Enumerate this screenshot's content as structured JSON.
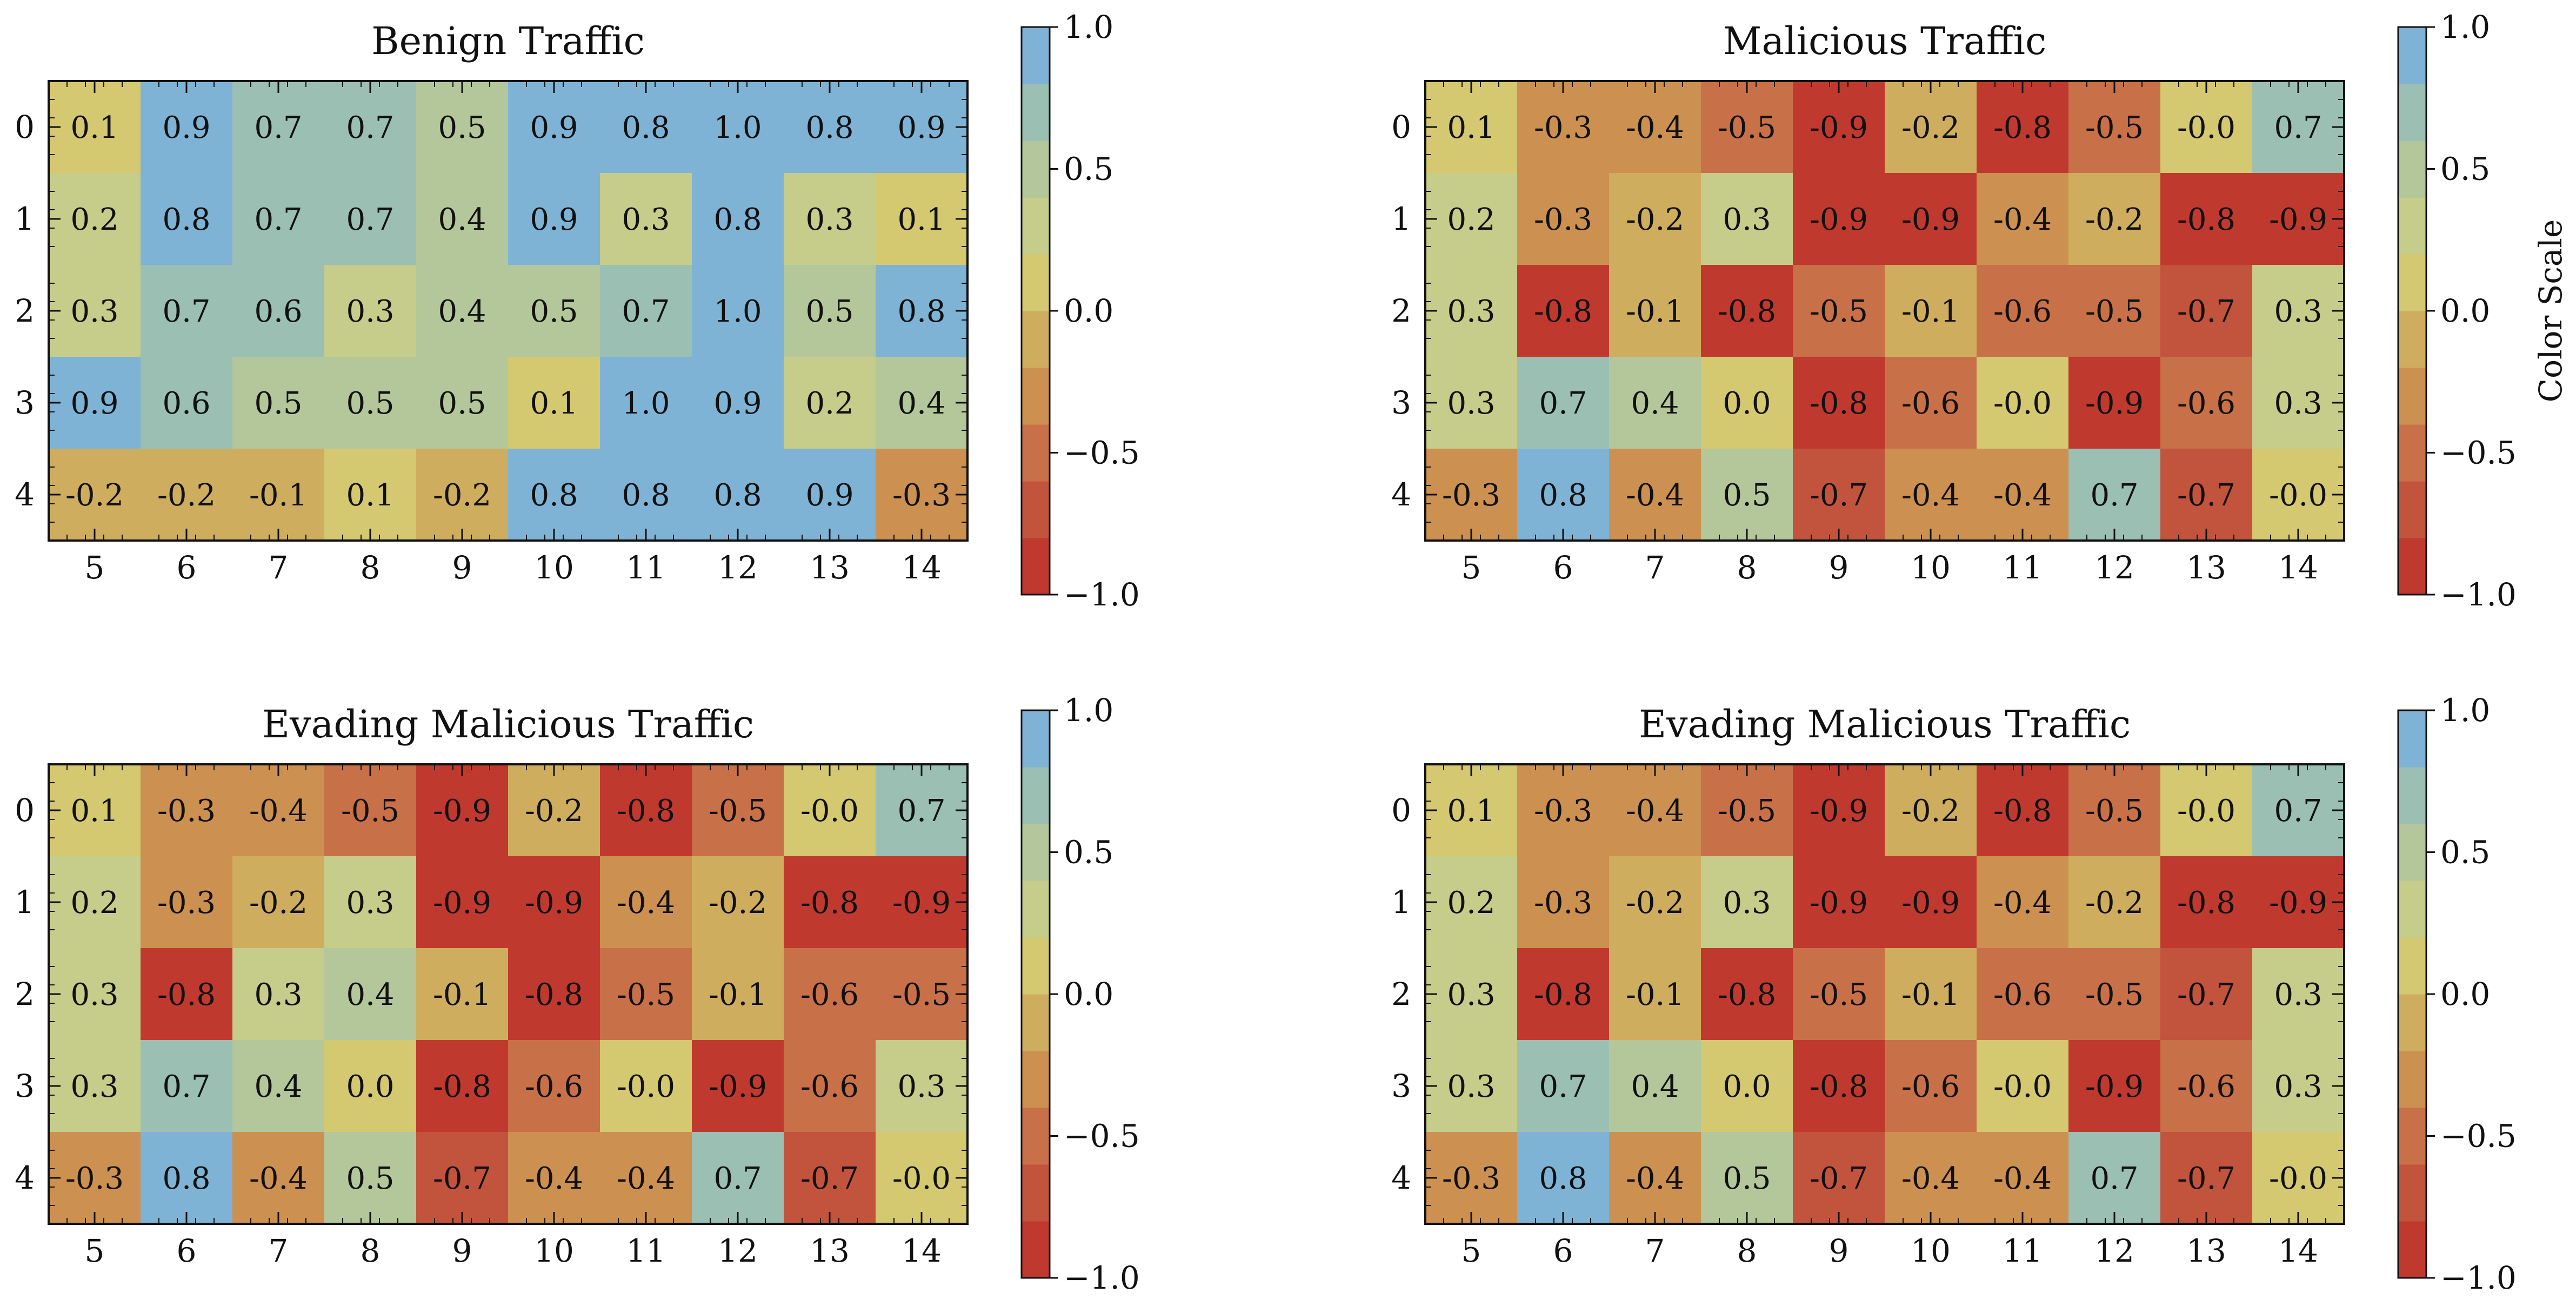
{
  "chart_data": [
    {
      "type": "heatmap",
      "title": "Benign Traffic",
      "x_ticks": [
        "5",
        "6",
        "7",
        "8",
        "9",
        "10",
        "11",
        "12",
        "13",
        "14"
      ],
      "y_ticks": [
        "0",
        "1",
        "2",
        "3",
        "4"
      ],
      "values": [
        [
          "0.1",
          "0.9",
          "0.7",
          "0.7",
          "0.5",
          "0.9",
          "0.8",
          "1.0",
          "0.8",
          "0.9"
        ],
        [
          "0.2",
          "0.8",
          "0.7",
          "0.7",
          "0.4",
          "0.9",
          "0.3",
          "0.8",
          "0.3",
          "0.1"
        ],
        [
          "0.3",
          "0.7",
          "0.6",
          "0.3",
          "0.4",
          "0.5",
          "0.7",
          "1.0",
          "0.5",
          "0.8"
        ],
        [
          "0.9",
          "0.6",
          "0.5",
          "0.5",
          "0.5",
          "0.1",
          "1.0",
          "0.9",
          "0.2",
          "0.4"
        ],
        [
          "-0.2",
          "-0.2",
          "-0.1",
          "0.1",
          "-0.2",
          "0.8",
          "0.8",
          "0.8",
          "0.9",
          "-0.3"
        ]
      ],
      "vmin": -1.0,
      "vmax": 1.0,
      "colorbar": {
        "ticks": [
          "1.0",
          "0.5",
          "0.0",
          "−0.5",
          "−1.0"
        ],
        "label": ""
      }
    },
    {
      "type": "heatmap",
      "title": "Malicious Traffic",
      "x_ticks": [
        "5",
        "6",
        "7",
        "8",
        "9",
        "10",
        "11",
        "12",
        "13",
        "14"
      ],
      "y_ticks": [
        "0",
        "1",
        "2",
        "3",
        "4"
      ],
      "values": [
        [
          "0.1",
          "-0.3",
          "-0.4",
          "-0.5",
          "-0.9",
          "-0.2",
          "-0.8",
          "-0.5",
          "-0.0",
          "0.7"
        ],
        [
          "0.2",
          "-0.3",
          "-0.2",
          "0.3",
          "-0.9",
          "-0.9",
          "-0.4",
          "-0.2",
          "-0.8",
          "-0.9"
        ],
        [
          "0.3",
          "-0.8",
          "-0.1",
          "-0.8",
          "-0.5",
          "-0.1",
          "-0.6",
          "-0.5",
          "-0.7",
          "0.3"
        ],
        [
          "0.3",
          "0.7",
          "0.4",
          "0.0",
          "-0.8",
          "-0.6",
          "-0.0",
          "-0.9",
          "-0.6",
          "0.3"
        ],
        [
          "-0.3",
          "0.8",
          "-0.4",
          "0.5",
          "-0.7",
          "-0.4",
          "-0.4",
          "0.7",
          "-0.7",
          "-0.0"
        ]
      ],
      "vmin": -1.0,
      "vmax": 1.0,
      "colorbar": {
        "ticks": [
          "1.0",
          "0.5",
          "0.0",
          "−0.5",
          "−1.0"
        ],
        "label": "Color Scale"
      }
    },
    {
      "type": "heatmap",
      "title": "Evading Malicious Traffic",
      "x_ticks": [
        "5",
        "6",
        "7",
        "8",
        "9",
        "10",
        "11",
        "12",
        "13",
        "14"
      ],
      "y_ticks": [
        "0",
        "1",
        "2",
        "3",
        "4"
      ],
      "values": [
        [
          "0.1",
          "-0.3",
          "-0.4",
          "-0.5",
          "-0.9",
          "-0.2",
          "-0.8",
          "-0.5",
          "-0.0",
          "0.7"
        ],
        [
          "0.2",
          "-0.3",
          "-0.2",
          "0.3",
          "-0.9",
          "-0.9",
          "-0.4",
          "-0.2",
          "-0.8",
          "-0.9"
        ],
        [
          "0.3",
          "-0.8",
          "0.3",
          "0.4",
          "-0.1",
          "-0.8",
          "-0.5",
          "-0.1",
          "-0.6",
          "-0.5"
        ],
        [
          "0.3",
          "0.7",
          "0.4",
          "0.0",
          "-0.8",
          "-0.6",
          "-0.0",
          "-0.9",
          "-0.6",
          "0.3"
        ],
        [
          "-0.3",
          "0.8",
          "-0.4",
          "0.5",
          "-0.7",
          "-0.4",
          "-0.4",
          "0.7",
          "-0.7",
          "-0.0"
        ]
      ],
      "vmin": -1.0,
      "vmax": 1.0,
      "colorbar": {
        "ticks": [
          "1.0",
          "0.5",
          "0.0",
          "−0.5",
          "−1.0"
        ],
        "label": ""
      }
    },
    {
      "type": "heatmap",
      "title": "Evading Malicious Traffic",
      "x_ticks": [
        "5",
        "6",
        "7",
        "8",
        "9",
        "10",
        "11",
        "12",
        "13",
        "14"
      ],
      "y_ticks": [
        "0",
        "1",
        "2",
        "3",
        "4"
      ],
      "values": [
        [
          "0.1",
          "-0.3",
          "-0.4",
          "-0.5",
          "-0.9",
          "-0.2",
          "-0.8",
          "-0.5",
          "-0.0",
          "0.7"
        ],
        [
          "0.2",
          "-0.3",
          "-0.2",
          "0.3",
          "-0.9",
          "-0.9",
          "-0.4",
          "-0.2",
          "-0.8",
          "-0.9"
        ],
        [
          "0.3",
          "-0.8",
          "-0.1",
          "-0.8",
          "-0.5",
          "-0.1",
          "-0.6",
          "-0.5",
          "-0.7",
          "0.3"
        ],
        [
          "0.3",
          "0.7",
          "0.4",
          "0.0",
          "-0.8",
          "-0.6",
          "-0.0",
          "-0.9",
          "-0.6",
          "0.3"
        ],
        [
          "-0.3",
          "0.8",
          "-0.4",
          "0.5",
          "-0.7",
          "-0.4",
          "-0.4",
          "0.7",
          "-0.7",
          "-0.0"
        ]
      ],
      "vmin": -1.0,
      "vmax": 1.0,
      "colorbar": {
        "ticks": [
          "1.0",
          "0.5",
          "0.0",
          "−0.5",
          "−1.0"
        ],
        "label": ""
      }
    }
  ],
  "colors": {
    "discrete_scale_low_to_high": [
      "#c0392f",
      "#c2533c",
      "#c87048",
      "#cc9050",
      "#cfad5e",
      "#d4c870",
      "#c6cc8a",
      "#b3c79b",
      "#9bbfb3",
      "#7fb3d5"
    ]
  }
}
